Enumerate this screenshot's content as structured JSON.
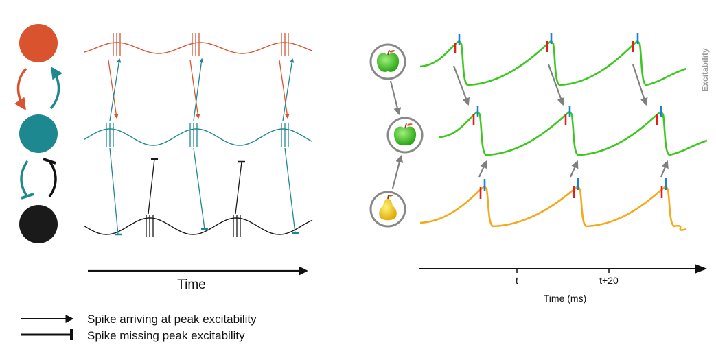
{
  "left": {
    "time_label": "Time",
    "legend": {
      "arrow_label": "Spike arriving at peak excitability",
      "bar_label": "Spike missing peak excitability"
    }
  },
  "right": {
    "excitability_label": "Excitability",
    "axis_title": "Time (ms)",
    "tick_t": "t",
    "tick_t20": "t+20"
  },
  "colors": {
    "orange_red": "#d9532f",
    "teal": "#1e8890",
    "black": "#1a1a1a",
    "green": "#3cc81e",
    "yellow_orange": "#f5a81c",
    "gray": "#808080",
    "red_marker": "#e02020",
    "blue_marker": "#1e7fe0"
  },
  "icons": {
    "top": "green-apple-icon",
    "middle": "green-apple-icon",
    "bottom": "pear-icon"
  }
}
